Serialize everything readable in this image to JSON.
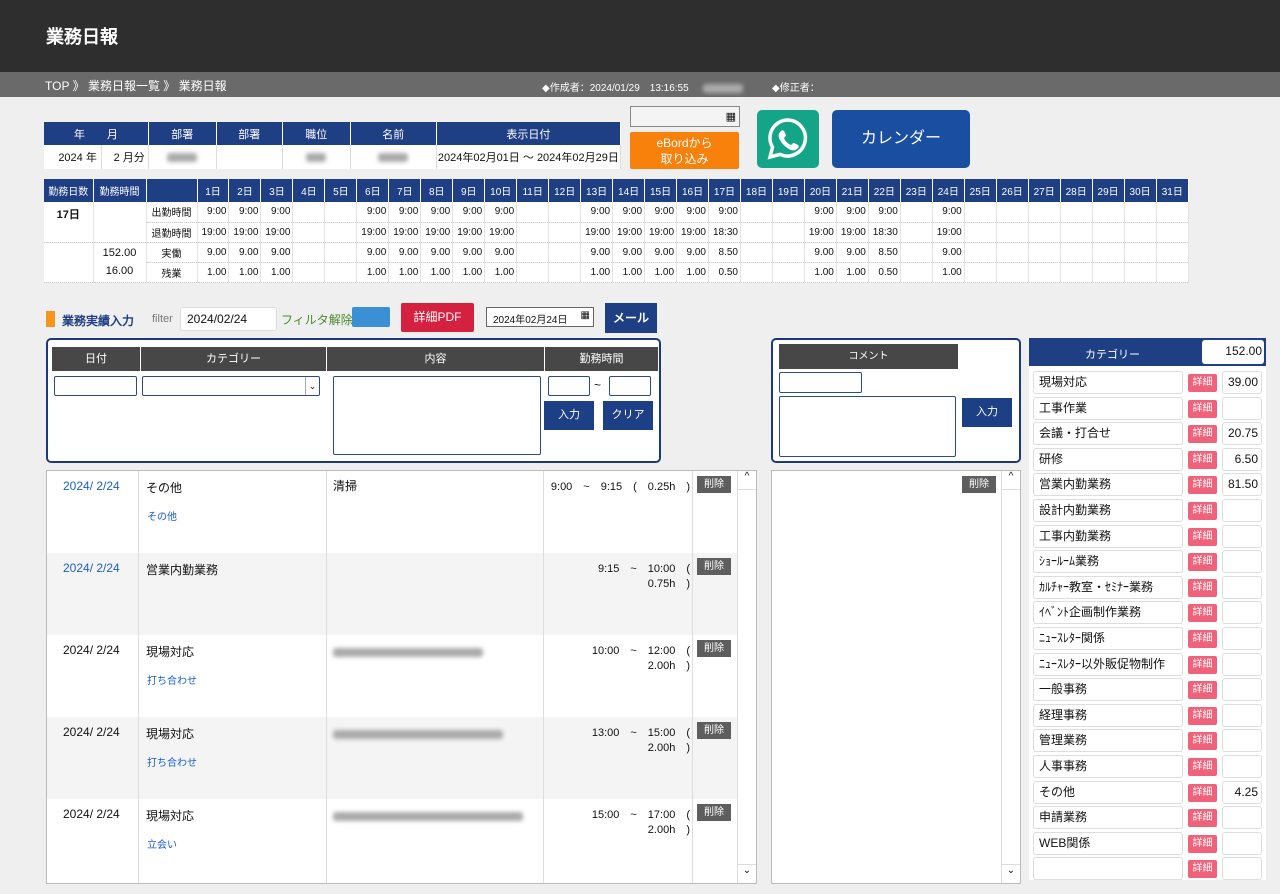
{
  "header": {
    "title": "業務日報"
  },
  "breadcrumb": {
    "items": [
      "TOP",
      "業務日報一覧",
      "業務日報"
    ],
    "sep": "》",
    "creator_label": "◆作成者：",
    "created_at": "2024/01/29　13:16:55",
    "modifier_label": "◆修正者："
  },
  "info": {
    "headers": [
      "年",
      "月",
      "部署",
      "部署",
      "職位",
      "名前",
      "表示日付"
    ],
    "year": "2024 年",
    "month": "2 月分",
    "date_from": "2024年02月01日",
    "tilde": "〜",
    "date_to": "2024年02月29日"
  },
  "actions": {
    "ebord": "eBordから取り込み",
    "calendar": "カレンダー",
    "whatsapp_icon": "whatsapp-icon",
    "calendar_icon": "calendar-icon"
  },
  "attendance": {
    "h_days": "勤務日数",
    "h_hours": "勤務時間",
    "work_days": "17日",
    "total": "152.00",
    "overtime": "16.00",
    "labels": [
      "出勤時間",
      "退勤時間",
      "実働",
      "残業"
    ],
    "days": [
      "1日",
      "2日",
      "3日",
      "4日",
      "5日",
      "6日",
      "7日",
      "8日",
      "9日",
      "10日",
      "11日",
      "12日",
      "13日",
      "14日",
      "15日",
      "16日",
      "17日",
      "18日",
      "19日",
      "20日",
      "21日",
      "22日",
      "23日",
      "24日",
      "25日",
      "26日",
      "27日",
      "28日",
      "29日",
      "30日",
      "31日"
    ],
    "start": [
      "9:00",
      "9:00",
      "9:00",
      "",
      "",
      "9:00",
      "9:00",
      "9:00",
      "9:00",
      "9:00",
      "",
      "",
      "9:00",
      "9:00",
      "9:00",
      "9:00",
      "9:00",
      "",
      "",
      "9:00",
      "9:00",
      "9:00",
      "",
      "9:00",
      "",
      "",
      "",
      "",
      "",
      "",
      ""
    ],
    "end": [
      "19:00",
      "19:00",
      "19:00",
      "",
      "",
      "19:00",
      "19:00",
      "19:00",
      "19:00",
      "19:00",
      "",
      "",
      "19:00",
      "19:00",
      "19:00",
      "19:00",
      "18:30",
      "",
      "",
      "19:00",
      "19:00",
      "18:30",
      "",
      "19:00",
      "",
      "",
      "",
      "",
      "",
      "",
      ""
    ],
    "actual": [
      "9.00",
      "9.00",
      "9.00",
      "",
      "",
      "9.00",
      "9.00",
      "9.00",
      "9.00",
      "9.00",
      "",
      "",
      "9.00",
      "9.00",
      "9.00",
      "9.00",
      "8.50",
      "",
      "",
      "9.00",
      "9.00",
      "8.50",
      "",
      "9.00",
      "",
      "",
      "",
      "",
      "",
      "",
      ""
    ],
    "over": [
      "1.00",
      "1.00",
      "1.00",
      "",
      "",
      "1.00",
      "1.00",
      "1.00",
      "1.00",
      "1.00",
      "",
      "",
      "1.00",
      "1.00",
      "1.00",
      "1.00",
      "0.50",
      "",
      "",
      "1.00",
      "1.00",
      "0.50",
      "",
      "1.00",
      "",
      "",
      "",
      "",
      "",
      "",
      ""
    ]
  },
  "toolbar": {
    "section": "業務実績入力",
    "filter_label": "filter",
    "filter_value": "2024/02/24",
    "clear_filter": "フィルタ解除",
    "pdf": "詳細PDF",
    "date_value": "2024年02月24日",
    "mail": "メール",
    "accent": "#f7941d"
  },
  "entry_form": {
    "h_date": "日付",
    "h_category": "カテゴリー",
    "h_content": "内容",
    "h_time": "勤務時間",
    "tilde": "~",
    "submit": "入力",
    "clear": "クリア"
  },
  "entries": [
    {
      "date": "2024/ 2/24",
      "category": "その他",
      "sub": "その他",
      "content": "清掃",
      "time": "9:00　~　9:15　(　0.25h　)",
      "delete": "削除",
      "date_link": true
    },
    {
      "date": "2024/ 2/24",
      "category": "営業内勤業務",
      "sub": "",
      "content": "",
      "time": "9:15　~　10:00　(　0.75h　)",
      "delete": "削除",
      "date_link": true
    },
    {
      "date": "2024/ 2/24",
      "category": "現場対応",
      "sub": "打ち合わせ",
      "content": "",
      "time": "10:00　~　12:00　(　2.00h　)",
      "delete": "削除",
      "date_link": false
    },
    {
      "date": "2024/ 2/24",
      "category": "現場対応",
      "sub": "打ち合わせ",
      "content": "",
      "time": "13:00　~　15:00　(　2.00h　)",
      "delete": "削除",
      "date_link": false
    },
    {
      "date": "2024/ 2/24",
      "category": "現場対応",
      "sub": "立会い",
      "content": "",
      "time": "15:00　~　17:00　(　2.00h　)",
      "delete": "削除",
      "date_link": false
    }
  ],
  "comment": {
    "header": "コメント",
    "submit": "入力",
    "delete": "削除"
  },
  "categories": {
    "header": "カテゴリー",
    "total": "152.00",
    "detail": "詳細",
    "items": [
      {
        "name": "現場対応",
        "value": "39.00"
      },
      {
        "name": "工事作業",
        "value": ""
      },
      {
        "name": "会議・打合せ",
        "value": "20.75"
      },
      {
        "name": "研修",
        "value": "6.50"
      },
      {
        "name": "営業内勤業務",
        "value": "81.50"
      },
      {
        "name": "設計内勤業務",
        "value": ""
      },
      {
        "name": "工事内勤業務",
        "value": ""
      },
      {
        "name": "ｼｮｰﾙｰﾑ業務",
        "value": ""
      },
      {
        "name": "ｶﾙﾁｬｰ教室・ｾﾐﾅｰ業務",
        "value": ""
      },
      {
        "name": "ｲﾍﾞﾝﾄ企画制作業務",
        "value": ""
      },
      {
        "name": "ﾆｭｰｽﾚﾀｰ関係",
        "value": ""
      },
      {
        "name": "ﾆｭｰｽﾚﾀｰ以外販促物制作",
        "value": ""
      },
      {
        "name": "一般事務",
        "value": ""
      },
      {
        "name": "経理事務",
        "value": ""
      },
      {
        "name": "管理業務",
        "value": ""
      },
      {
        "name": "人事事務",
        "value": ""
      },
      {
        "name": "その他",
        "value": "4.25"
      },
      {
        "name": "申請業務",
        "value": ""
      },
      {
        "name": "WEB関係",
        "value": ""
      },
      {
        "name": "",
        "value": ""
      }
    ]
  }
}
